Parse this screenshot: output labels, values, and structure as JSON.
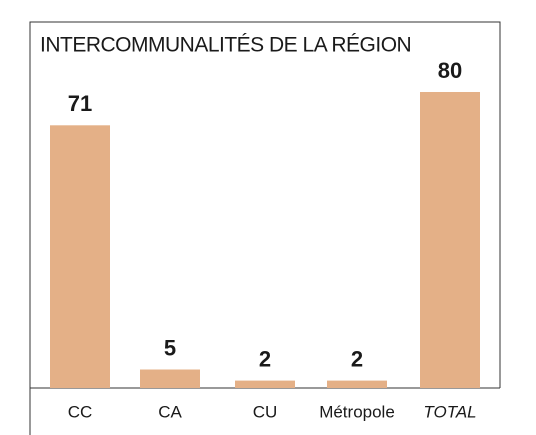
{
  "chart_data": {
    "type": "bar",
    "title": "INTERCOMMUNALITÉS DE LA RÉGION",
    "categories": [
      "CC",
      "CA",
      "CU",
      "Métropole",
      "TOTAL"
    ],
    "values": [
      71,
      5,
      2,
      2,
      80
    ],
    "color": "#e4b087"
  }
}
